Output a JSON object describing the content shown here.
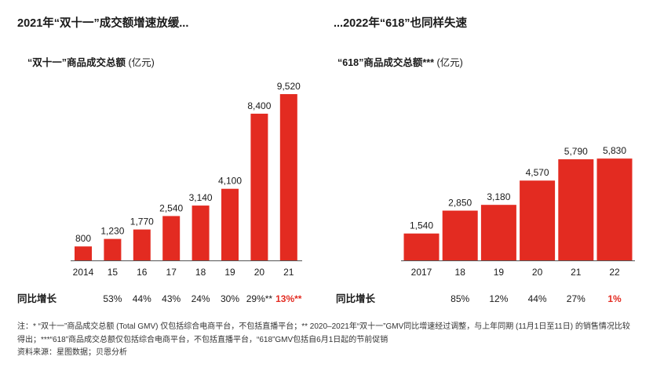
{
  "colors": {
    "bar": "#E32B21",
    "highlight_text": "#E32B21",
    "text": "#1A1A1A",
    "axis": "#555555"
  },
  "chart_data": [
    {
      "type": "bar",
      "title": "2021年“双十一”成交额增速放缓...",
      "subtitle": "“双十一”商品成交总额",
      "unit": "(亿元)",
      "categories": [
        "2014",
        "15",
        "16",
        "17",
        "18",
        "19",
        "20",
        "21"
      ],
      "values": [
        800,
        1230,
        1770,
        2540,
        3140,
        4100,
        8400,
        9520
      ],
      "value_labels": [
        "800",
        "1,230",
        "1,770",
        "2,540",
        "3,140",
        "4,100",
        "8,400",
        "9,520"
      ],
      "growth_label": "同比增长",
      "growth": [
        null,
        "53%",
        "44%",
        "43%",
        "24%",
        "30%",
        "29%**",
        "13%**"
      ],
      "highlight_index": 7,
      "grid": false
    },
    {
      "type": "bar",
      "title": "...2022年“618”也同样失速",
      "subtitle": "“618”商品成交总额***",
      "unit": "(亿元)",
      "categories": [
        "2017",
        "18",
        "19",
        "20",
        "21",
        "22"
      ],
      "values": [
        1540,
        2850,
        3180,
        4570,
        5790,
        5830
      ],
      "value_labels": [
        "1,540",
        "2,850",
        "3,180",
        "4,570",
        "5,790",
        "5,830"
      ],
      "growth_label": "同比增长",
      "growth": [
        null,
        "85%",
        "12%",
        "44%",
        "27%",
        "1%"
      ],
      "highlight_index": 5,
      "grid": false
    }
  ],
  "footnote": {
    "note": "注：* “双十一”商品成交总额 (Total GMV) 仅包括综合电商平台，不包括直播平台；** 2020–2021年“双十一”GMV同比增速经过调整，与上年同期 (11月1日至11日) 的销售情况比较得出；***“618”商品成交总额仅包括综合电商平台，不包括直播平台，“618”GMV包括自6月1日起的节前促销",
    "source": "资料来源：星图数据；贝恩分析"
  }
}
